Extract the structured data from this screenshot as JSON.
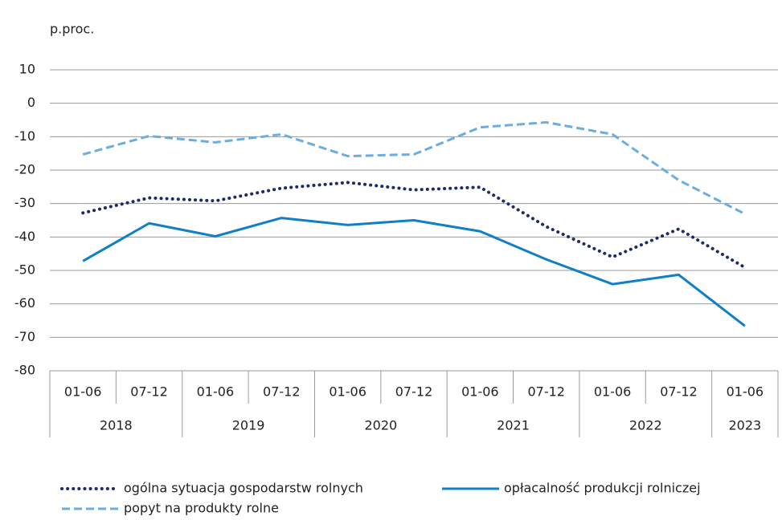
{
  "chart_data": {
    "type": "line",
    "y_unit_label": "p.proc.",
    "categories": [
      "01-06",
      "07-12",
      "01-06",
      "07-12",
      "01-06",
      "07-12",
      "01-06",
      "07-12",
      "01-06",
      "07-12",
      "01-06"
    ],
    "category_groups": [
      {
        "label": "2018",
        "size": 2
      },
      {
        "label": "2019",
        "size": 2
      },
      {
        "label": "2020",
        "size": 2
      },
      {
        "label": "2021",
        "size": 2
      },
      {
        "label": "2022",
        "size": 2
      },
      {
        "label": "2023",
        "size": 1
      }
    ],
    "series": [
      {
        "name": "ogólna sytuacja gospodarstw rolnych",
        "color": "#1f2a6b",
        "style": "dotted",
        "values": [
          -32.8,
          -28.3,
          -29.2,
          -25.4,
          -23.7,
          -25.9,
          -25.1,
          -36.9,
          -46,
          -37.6,
          -49.1
        ]
      },
      {
        "name": "opłacalność produkcji rolniczej",
        "color": "#0f7fc8",
        "style": "solid",
        "values": [
          -47.2,
          -35.9,
          -39.8,
          -34.3,
          -36.4,
          -35,
          -38.3,
          -46.7,
          -54.1,
          -51.3,
          -66.6
        ]
      },
      {
        "name": "popyt na produkty rolne",
        "color": "#6aaee0",
        "style": "dashed",
        "values": [
          -15.3,
          -9.8,
          -11.7,
          -9.3,
          -15.8,
          -15.3,
          -7.2,
          -5.7,
          -9.3,
          -23,
          -33.1
        ]
      }
    ],
    "ylim": [
      -80,
      10
    ],
    "yticks": [
      -80,
      -70,
      -60,
      -50,
      -40,
      -30,
      -20,
      -10,
      0,
      10
    ],
    "grid": true
  }
}
